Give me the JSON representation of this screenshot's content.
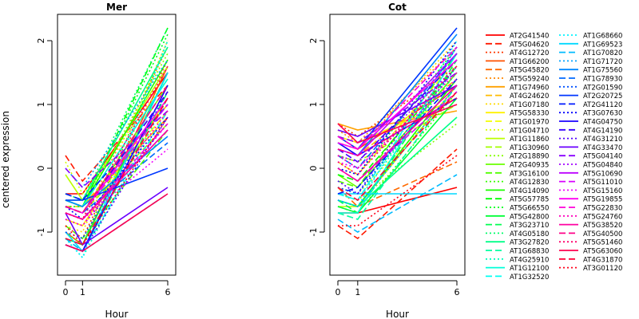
{
  "figure": {
    "ylabel": "centered expression",
    "xlabel": "Hour"
  },
  "chart_data": [
    {
      "type": "line",
      "title": "Mer",
      "xlabel": "Hour",
      "ylabel": "centered expression",
      "x": [
        0,
        1,
        6
      ],
      "x_ticks": [
        "0",
        "1",
        "6"
      ],
      "ylim": [
        -1.5,
        2.3
      ],
      "y_ticks": [
        -1,
        0,
        1,
        2
      ],
      "grid": false,
      "series": [
        {
          "name": "AT2G41540",
          "values": [
            -0.4,
            -0.4,
            1.5
          ]
        },
        {
          "name": "AT5G04620",
          "values": [
            0.2,
            -0.2,
            1.3
          ]
        },
        {
          "name": "AT4G12720",
          "values": [
            -0.9,
            -1.1,
            1.7
          ]
        },
        {
          "name": "AT1G66200",
          "values": [
            -1.0,
            -1.2,
            1.6
          ]
        },
        {
          "name": "AT5G45820",
          "values": [
            -0.6,
            -0.7,
            1.2
          ]
        },
        {
          "name": "AT5G59240",
          "values": [
            -0.7,
            -0.8,
            1.9
          ]
        },
        {
          "name": "AT1G74960",
          "values": [
            -0.5,
            -0.6,
            0.8
          ]
        },
        {
          "name": "AT4G24620",
          "values": [
            -0.6,
            -0.6,
            1.0
          ]
        },
        {
          "name": "AT1G07180",
          "values": [
            -0.9,
            -1.0,
            2.0
          ]
        },
        {
          "name": "AT5G58330",
          "values": [
            -0.8,
            -0.9,
            1.1
          ]
        },
        {
          "name": "AT1G01970",
          "values": [
            -0.6,
            -0.7,
            0.9
          ]
        },
        {
          "name": "AT1G04710",
          "values": [
            0.1,
            -0.4,
            1.4
          ]
        },
        {
          "name": "AT1G11860",
          "values": [
            -0.1,
            -0.5,
            1.6
          ]
        },
        {
          "name": "AT1G30960",
          "values": [
            -0.6,
            -0.7,
            0.7
          ]
        },
        {
          "name": "AT2G18890",
          "values": [
            -0.5,
            -0.6,
            1.8
          ]
        },
        {
          "name": "AT2G40935",
          "values": [
            -0.6,
            -0.7,
            1.3
          ]
        },
        {
          "name": "AT3G16100",
          "values": [
            -0.9,
            -1.1,
            0.6
          ]
        },
        {
          "name": "AT4G12830",
          "values": [
            -1.0,
            -1.2,
            2.0
          ]
        },
        {
          "name": "AT4G14090",
          "values": [
            -0.5,
            -0.6,
            1.7
          ]
        },
        {
          "name": "AT5G57785",
          "values": [
            -0.5,
            -0.6,
            2.2
          ]
        },
        {
          "name": "AT5G66550",
          "values": [
            -0.6,
            -0.6,
            2.1
          ]
        },
        {
          "name": "AT5G42800",
          "values": [
            -1.1,
            -1.2,
            1.5
          ]
        },
        {
          "name": "AT3G23710",
          "values": [
            -1.1,
            -1.3,
            1.2
          ]
        },
        {
          "name": "AT4G05180",
          "values": [
            -0.4,
            -0.5,
            2.2
          ]
        },
        {
          "name": "AT3G27820",
          "values": [
            -0.5,
            -0.5,
            1.9
          ]
        },
        {
          "name": "AT1G68830",
          "values": [
            -0.4,
            -0.5,
            1.0
          ]
        },
        {
          "name": "AT4G25910",
          "values": [
            -1.1,
            -1.4,
            1.1
          ]
        },
        {
          "name": "AT1G12100",
          "values": [
            -0.5,
            -0.6,
            1.4
          ]
        },
        {
          "name": "AT1G32520",
          "values": [
            -1.2,
            -1.3,
            0.9
          ]
        },
        {
          "name": "AT1G68660",
          "values": [
            -1.1,
            -1.4,
            2.0
          ]
        },
        {
          "name": "AT1G69523",
          "values": [
            -1.0,
            -1.3,
            1.5
          ]
        },
        {
          "name": "AT1G70820",
          "values": [
            -1.1,
            -1.3,
            -0.4
          ]
        },
        {
          "name": "AT1G71720",
          "values": [
            0.0,
            -0.3,
            1.7
          ]
        },
        {
          "name": "AT1G75560",
          "values": [
            -0.5,
            -0.6,
            0.5
          ]
        },
        {
          "name": "AT1G78930",
          "values": [
            -0.6,
            -0.7,
            0.4
          ]
        },
        {
          "name": "AT2G01590",
          "values": [
            -1.0,
            -1.1,
            1.2
          ]
        },
        {
          "name": "AT2G20725",
          "values": [
            -0.5,
            -0.5,
            0.0
          ]
        },
        {
          "name": "AT2G41120",
          "values": [
            -0.4,
            -0.5,
            1.0
          ]
        },
        {
          "name": "AT3G07630",
          "values": [
            -0.6,
            -0.8,
            0.8
          ]
        },
        {
          "name": "AT4G04750",
          "values": [
            -1.2,
            -1.3,
            1.3
          ]
        },
        {
          "name": "AT4G14190",
          "values": [
            -0.6,
            -0.7,
            1.2
          ]
        },
        {
          "name": "AT4G31210",
          "values": [
            -1.2,
            -1.3,
            0.8
          ]
        },
        {
          "name": "AT4G33470",
          "values": [
            -0.7,
            -1.2,
            -0.3
          ]
        },
        {
          "name": "AT5G04140",
          "values": [
            0.0,
            -0.3,
            0.9
          ]
        },
        {
          "name": "AT5G04840",
          "values": [
            -0.8,
            -0.9,
            0.7
          ]
        },
        {
          "name": "AT5G10690",
          "values": [
            -0.7,
            -0.8,
            0.6
          ]
        },
        {
          "name": "AT5G11010",
          "values": [
            -0.6,
            -0.7,
            1.0
          ]
        },
        {
          "name": "AT5G15160",
          "values": [
            -0.7,
            -0.8,
            0.3
          ]
        },
        {
          "name": "AT5G19855",
          "values": [
            -0.6,
            -0.7,
            1.1
          ]
        },
        {
          "name": "AT5G22830",
          "values": [
            -0.7,
            -0.8,
            0.7
          ]
        },
        {
          "name": "AT5G24760",
          "values": [
            -0.8,
            -0.9,
            0.9
          ]
        },
        {
          "name": "AT5G38520",
          "values": [
            -0.7,
            -0.8,
            0.6
          ]
        },
        {
          "name": "AT5G40500",
          "values": [
            -0.6,
            -0.7,
            1.3
          ]
        },
        {
          "name": "AT5G51460",
          "values": [
            -0.7,
            -0.8,
            1.6
          ]
        },
        {
          "name": "AT5G63060",
          "values": [
            -1.2,
            -1.3,
            -0.4
          ]
        },
        {
          "name": "AT4G31870",
          "values": [
            -1.1,
            -1.2,
            1.1
          ]
        },
        {
          "name": "AT3G01120",
          "values": [
            -0.9,
            -1.2,
            0.8
          ]
        }
      ]
    },
    {
      "type": "line",
      "title": "Cot",
      "xlabel": "Hour",
      "ylabel": "",
      "x": [
        0,
        1,
        6
      ],
      "x_ticks": [
        "0",
        "1",
        "6"
      ],
      "ylim": [
        -1.5,
        2.3
      ],
      "y_ticks": [
        -1,
        0,
        1,
        2
      ],
      "grid": false,
      "series": [
        {
          "name": "AT2G41540",
          "values": [
            -0.7,
            -0.7,
            -0.3
          ]
        },
        {
          "name": "AT5G04620",
          "values": [
            -0.9,
            -1.1,
            0.3
          ]
        },
        {
          "name": "AT4G12720",
          "values": [
            0.7,
            0.5,
            1.6
          ]
        },
        {
          "name": "AT1G66200",
          "values": [
            0.5,
            0.3,
            1.3
          ]
        },
        {
          "name": "AT5G45820",
          "values": [
            -0.3,
            -0.6,
            0.1
          ]
        },
        {
          "name": "AT5G59240",
          "values": [
            0.6,
            0.4,
            1.9
          ]
        },
        {
          "name": "AT1G74960",
          "values": [
            0.7,
            0.6,
            0.9
          ]
        },
        {
          "name": "AT4G24620",
          "values": [
            0.3,
            0.2,
            1.4
          ]
        },
        {
          "name": "AT1G07180",
          "values": [
            0.4,
            0.3,
            2.0
          ]
        },
        {
          "name": "AT5G58330",
          "values": [
            0.5,
            0.4,
            1.1
          ]
        },
        {
          "name": "AT1G01970",
          "values": [
            0.1,
            -0.1,
            1.7
          ]
        },
        {
          "name": "AT1G04710",
          "values": [
            -0.3,
            -0.4,
            1.2
          ]
        },
        {
          "name": "AT1G11860",
          "values": [
            -0.6,
            -0.6,
            1.3
          ]
        },
        {
          "name": "AT1G30960",
          "values": [
            0.2,
            0.1,
            1.0
          ]
        },
        {
          "name": "AT2G18890",
          "values": [
            -0.4,
            -0.5,
            0.7
          ]
        },
        {
          "name": "AT2G40935",
          "values": [
            -0.1,
            -0.3,
            1.5
          ]
        },
        {
          "name": "AT3G16100",
          "values": [
            -0.2,
            -0.3,
            1.8
          ]
        },
        {
          "name": "AT4G12830",
          "values": [
            -0.6,
            -0.7,
            1.2
          ]
        },
        {
          "name": "AT4G14090",
          "values": [
            -0.5,
            -0.6,
            1.4
          ]
        },
        {
          "name": "AT5G57785",
          "values": [
            -0.1,
            -0.2,
            1.6
          ]
        },
        {
          "name": "AT5G66550",
          "values": [
            0.0,
            -0.1,
            1.9
          ]
        },
        {
          "name": "AT5G42800",
          "values": [
            -0.6,
            -0.7,
            1.1
          ]
        },
        {
          "name": "AT3G23710",
          "values": [
            -0.5,
            -0.7,
            1.7
          ]
        },
        {
          "name": "AT4G05180",
          "values": [
            -0.3,
            -0.4,
            1.5
          ]
        },
        {
          "name": "AT3G27820",
          "values": [
            -0.5,
            -0.6,
            0.8
          ]
        },
        {
          "name": "AT1G68830",
          "values": [
            -0.7,
            -0.8,
            1.3
          ]
        },
        {
          "name": "AT4G25910",
          "values": [
            -0.4,
            -0.5,
            1.6
          ]
        },
        {
          "name": "AT1G12100",
          "values": [
            -0.7,
            -0.7,
            1.8
          ]
        },
        {
          "name": "AT1G32520",
          "values": [
            -0.4,
            -0.5,
            1.9
          ]
        },
        {
          "name": "AT1G68660",
          "values": [
            -0.5,
            -0.6,
            2.0
          ]
        },
        {
          "name": "AT1G69523",
          "values": [
            -0.4,
            -0.4,
            -0.4
          ]
        },
        {
          "name": "AT1G70820",
          "values": [
            -0.8,
            -1.0,
            -0.1
          ]
        },
        {
          "name": "AT1G71720",
          "values": [
            -0.5,
            -0.6,
            1.3
          ]
        },
        {
          "name": "AT1G75560",
          "values": [
            0.4,
            0.2,
            2.1
          ]
        },
        {
          "name": "AT1G78930",
          "values": [
            0.2,
            0.0,
            1.8
          ]
        },
        {
          "name": "AT2G01590",
          "values": [
            -0.3,
            -0.4,
            1.6
          ]
        },
        {
          "name": "AT2G20725",
          "values": [
            0.5,
            0.3,
            2.2
          ]
        },
        {
          "name": "AT2G41120",
          "values": [
            -0.4,
            -0.3,
            1.4
          ]
        },
        {
          "name": "AT3G07630",
          "values": [
            0.0,
            -0.1,
            2.0
          ]
        },
        {
          "name": "AT4G04750",
          "values": [
            0.4,
            0.2,
            1.1
          ]
        },
        {
          "name": "AT4G14190",
          "values": [
            0.3,
            0.1,
            1.7
          ]
        },
        {
          "name": "AT4G31210",
          "values": [
            -0.2,
            -0.4,
            1.9
          ]
        },
        {
          "name": "AT4G33470",
          "values": [
            0.6,
            0.5,
            1.3
          ]
        },
        {
          "name": "AT5G04140",
          "values": [
            0.5,
            0.4,
            1.5
          ]
        },
        {
          "name": "AT5G04840",
          "values": [
            0.2,
            0.1,
            1.6
          ]
        },
        {
          "name": "AT5G10690",
          "values": [
            0.3,
            0.2,
            1.8
          ]
        },
        {
          "name": "AT5G11010",
          "values": [
            0.0,
            -0.2,
            1.2
          ]
        },
        {
          "name": "AT5G15160",
          "values": [
            0.1,
            0.0,
            1.4
          ]
        },
        {
          "name": "AT5G19855",
          "values": [
            0.4,
            0.3,
            1.7
          ]
        },
        {
          "name": "AT5G22830",
          "values": [
            0.5,
            0.3,
            1.9
          ]
        },
        {
          "name": "AT5G24760",
          "values": [
            0.2,
            0.0,
            1.5
          ]
        },
        {
          "name": "AT5G38520",
          "values": [
            0.0,
            -0.2,
            1.3
          ]
        },
        {
          "name": "AT5G40500",
          "values": [
            0.3,
            0.2,
            1.1
          ]
        },
        {
          "name": "AT5G51460",
          "values": [
            0.1,
            -0.1,
            1.6
          ]
        },
        {
          "name": "AT5G63060",
          "values": [
            0.7,
            0.4,
            1.0
          ]
        },
        {
          "name": "AT4G31870",
          "values": [
            -0.3,
            -0.5,
            1.2
          ]
        },
        {
          "name": "AT3G01120",
          "values": [
            -0.9,
            -0.9,
            0.2
          ]
        }
      ]
    }
  ]
}
